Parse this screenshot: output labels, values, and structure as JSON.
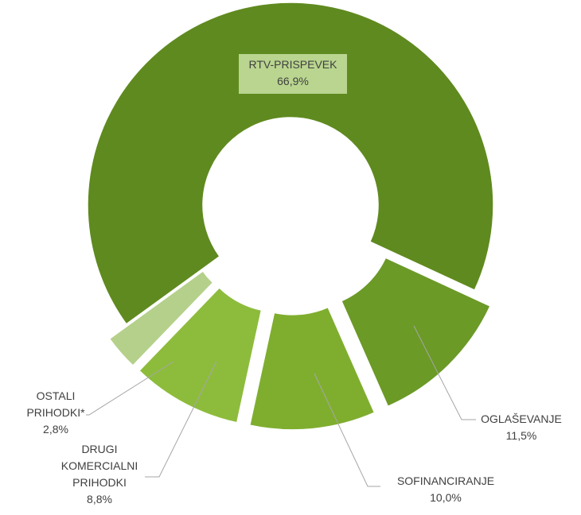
{
  "chart_data": {
    "type": "donut",
    "categories": [
      "RTV-PRISPEVEK",
      "OGLAŠEVANJE",
      "SOFINANCIRANJE",
      "DRUGI KOMERCIALNI PRIHODKI",
      "OSTALI PRIHODKI*"
    ],
    "values": [
      66.9,
      11.5,
      10.0,
      8.8,
      2.8
    ],
    "value_labels": [
      "66,9%",
      "11,5%",
      "10,0%",
      "8,8%",
      "2,8%"
    ],
    "colors": [
      "#5f8a1f",
      "#6b9a27",
      "#7fae2f",
      "#8dbc3c",
      "#b4d08a"
    ]
  }
}
